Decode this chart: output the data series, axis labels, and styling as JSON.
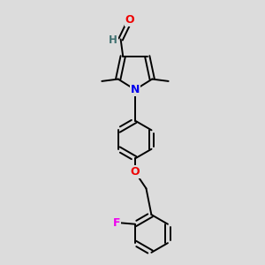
{
  "bg_color": "#dcdcdc",
  "bond_color": "#000000",
  "bond_width": 1.4,
  "atom_colors": {
    "N": "#0000ee",
    "O": "#ee0000",
    "F": "#ee00ee",
    "H": "#407070",
    "C": "#000000"
  },
  "font_size": 8.5
}
